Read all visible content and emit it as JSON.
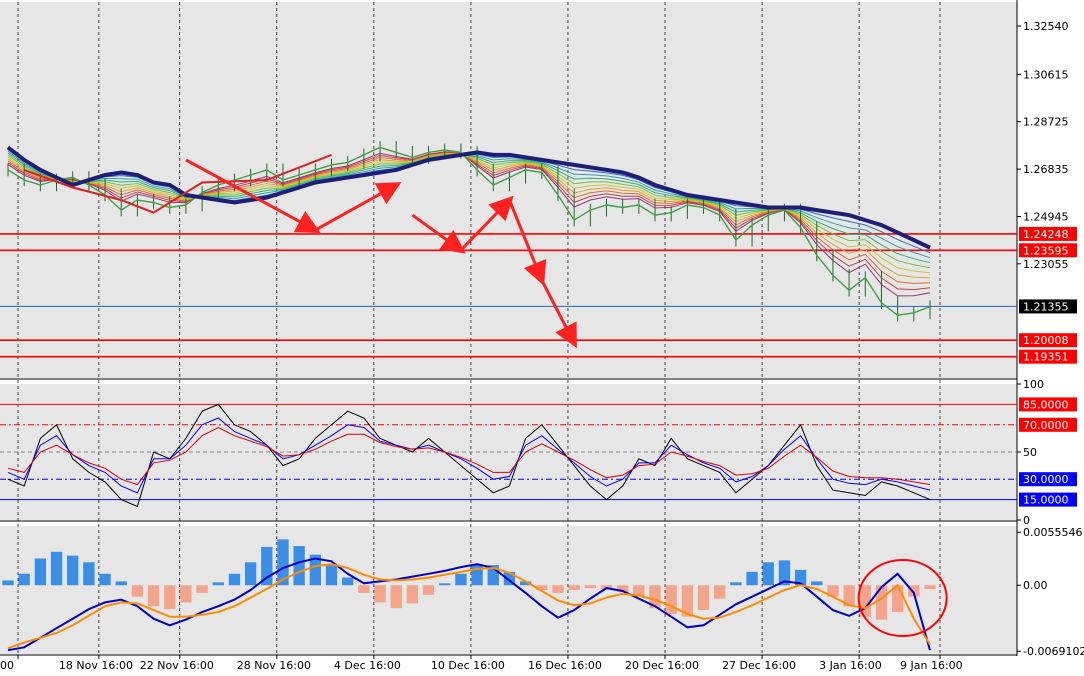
{
  "chart_data": [
    {
      "type": "line",
      "name": "price-panel",
      "ylim": [
        1.185,
        1.335
      ],
      "yticks": [
        "1.32540",
        "1.30615",
        "1.28725",
        "1.26835",
        "1.24945",
        "1.23055"
      ],
      "ytick_values": [
        1.3254,
        1.30615,
        1.28725,
        1.26835,
        1.24945,
        1.23055
      ],
      "levels": [
        {
          "label": "1.24248",
          "value": 1.24248,
          "color": "#ff0000"
        },
        {
          "label": "1.23595",
          "value": 1.23595,
          "color": "#ff0000"
        },
        {
          "label": "1.21355",
          "value": 1.21355,
          "color": "#000000",
          "line_color": "#1e64c8"
        },
        {
          "label": "1.20008",
          "value": 1.20008,
          "color": "#ff0000"
        },
        {
          "label": "1.19351",
          "value": 1.19351,
          "color": "#ff0000"
        }
      ],
      "series": [
        {
          "values": [
            1.277,
            1.272,
            1.268,
            1.265,
            1.262,
            1.264,
            1.266,
            1.267,
            1.266,
            1.263,
            1.262,
            1.258,
            1.257,
            1.256,
            1.255,
            1.256,
            1.257,
            1.259,
            1.261,
            1.263,
            1.264,
            1.265,
            1.266,
            1.267,
            1.268,
            1.27,
            1.272,
            1.273,
            1.274,
            1.275,
            1.274,
            1.274,
            1.273,
            1.272,
            1.271,
            1.27,
            1.269,
            1.268,
            1.267,
            1.265,
            1.262,
            1.26,
            1.258,
            1.257,
            1.256,
            1.255,
            1.254,
            1.253,
            1.253,
            1.253,
            1.252,
            1.251,
            1.25,
            1.248,
            1.246,
            1.243,
            1.24,
            1.237
          ]
        },
        {
          "values": [
            1.268,
            1.264,
            1.262,
            1.264,
            1.265,
            1.262,
            1.258,
            1.252,
            1.256,
            1.255,
            1.253,
            1.254,
            1.259,
            1.262,
            1.264,
            1.266,
            1.268,
            1.264,
            1.266,
            1.268,
            1.27,
            1.271,
            1.274,
            1.277,
            1.275,
            1.273,
            1.275,
            1.276,
            1.275,
            1.268,
            1.262,
            1.265,
            1.268,
            1.267,
            1.258,
            1.248,
            1.252,
            1.254,
            1.253,
            1.254,
            1.25,
            1.251,
            1.254,
            1.253,
            1.25,
            1.24,
            1.246,
            1.25,
            1.252,
            1.245,
            1.234,
            1.226,
            1.22,
            1.225,
            1.215,
            1.21,
            1.211,
            1.2135
          ]
        }
      ],
      "annotations": [
        {
          "type": "arrow",
          "points": [
            [
              1.272,
              11
            ],
            [
              1.244,
              19
            ]
          ]
        },
        {
          "type": "arrow",
          "points": [
            [
              1.244,
              19
            ],
            [
              1.262,
              24
            ]
          ]
        },
        {
          "type": "arrow",
          "points": [
            [
              1.25,
              25
            ],
            [
              1.236,
              28
            ]
          ]
        },
        {
          "type": "arrow",
          "points": [
            [
              1.236,
              28
            ],
            [
              1.256,
              31
            ]
          ]
        },
        {
          "type": "arrow",
          "points": [
            [
              1.256,
              31
            ],
            [
              1.224,
              33
            ]
          ]
        },
        {
          "type": "arrow",
          "points": [
            [
              1.224,
              33
            ],
            [
              1.199,
              35
            ]
          ]
        }
      ]
    },
    {
      "type": "line",
      "name": "oscillator-panel",
      "ylim": [
        0,
        100
      ],
      "yticks": [
        "100",
        "50",
        "0"
      ],
      "ytick_values": [
        100,
        50,
        0
      ],
      "levels": [
        {
          "label": "85.0000",
          "value": 85,
          "color": "#ff0000"
        },
        {
          "label": "70.0000",
          "value": 70,
          "color": "#ff0000"
        },
        {
          "label": "30.0000",
          "value": 30,
          "color": "#0000ff"
        },
        {
          "label": "15.0000",
          "value": 15,
          "color": "#0000ff"
        }
      ],
      "series": [
        {
          "values": [
            30,
            25,
            60,
            70,
            45,
            35,
            28,
            15,
            10,
            50,
            45,
            60,
            80,
            85,
            70,
            65,
            55,
            40,
            45,
            60,
            70,
            80,
            75,
            60,
            55,
            50,
            60,
            50,
            40,
            30,
            20,
            25,
            60,
            70,
            55,
            40,
            25,
            15,
            25,
            45,
            40,
            60,
            45,
            40,
            35,
            20,
            30,
            40,
            55,
            70,
            40,
            22,
            20,
            18,
            28,
            25,
            20,
            15
          ]
        },
        {
          "values": [
            35,
            30,
            55,
            62,
            48,
            40,
            35,
            25,
            20,
            45,
            45,
            55,
            70,
            75,
            65,
            60,
            55,
            45,
            48,
            55,
            62,
            70,
            68,
            58,
            55,
            52,
            55,
            50,
            45,
            38,
            30,
            32,
            55,
            62,
            52,
            42,
            32,
            25,
            30,
            42,
            42,
            55,
            48,
            42,
            38,
            28,
            32,
            40,
            52,
            62,
            45,
            30,
            27,
            26,
            30,
            28,
            25,
            22
          ]
        },
        {
          "values": [
            38,
            35,
            50,
            55,
            48,
            42,
            38,
            30,
            26,
            42,
            44,
            50,
            62,
            68,
            62,
            58,
            54,
            47,
            48,
            52,
            58,
            63,
            63,
            57,
            54,
            52,
            53,
            50,
            46,
            41,
            35,
            35,
            50,
            56,
            50,
            44,
            37,
            31,
            33,
            40,
            41,
            50,
            47,
            43,
            40,
            33,
            34,
            38,
            47,
            55,
            46,
            36,
            32,
            31,
            31,
            30,
            28,
            26
          ]
        }
      ]
    },
    {
      "type": "bar",
      "name": "histogram-panel",
      "ylim": [
        -0.0072,
        0.0062
      ],
      "yticks": [
        "0.0055546",
        "0.00",
        "-0.0069102"
      ],
      "ytick_values": [
        0.0055546,
        0,
        -0.0069102
      ],
      "values": [
        0.0005,
        0.0012,
        0.0028,
        0.0035,
        0.0031,
        0.0024,
        0.0012,
        0.0004,
        -0.0012,
        -0.0022,
        -0.0025,
        -0.0018,
        -0.0008,
        0.0003,
        0.0012,
        0.0024,
        0.004,
        0.0048,
        0.0041,
        0.0032,
        0.0021,
        0.0008,
        -0.0008,
        -0.0018,
        -0.0024,
        -0.0019,
        -0.001,
        0.0002,
        0.0012,
        0.0022,
        0.0021,
        0.0014,
        0.0004,
        -0.0005,
        -0.0008,
        -0.0005,
        -0.0003,
        -0.0004,
        -0.0007,
        -0.0012,
        -0.0024,
        -0.003,
        -0.0033,
        -0.0026,
        -0.0014,
        0.0003,
        0.0014,
        0.0024,
        0.0026,
        0.0016,
        0.0004,
        -0.0012,
        -0.0022,
        -0.0033,
        -0.0036,
        -0.0028,
        -0.0012,
        -0.0004
      ],
      "series": [
        {
          "values": [
            -0.0068,
            -0.0065,
            -0.0055,
            -0.0045,
            -0.0035,
            -0.0025,
            -0.0018,
            -0.0015,
            -0.0022,
            -0.0035,
            -0.0042,
            -0.0036,
            -0.0028,
            -0.0022,
            -0.0015,
            -0.0005,
            0.0008,
            0.0018,
            0.0024,
            0.0028,
            0.0025,
            0.0012,
            0.0002,
            0.0004,
            0.0006,
            0.0009,
            0.0012,
            0.0015,
            0.0019,
            0.0022,
            0.0018,
            0.0005,
            -0.0008,
            -0.0022,
            -0.0034,
            -0.0026,
            -0.0014,
            -0.0003,
            -0.0006,
            -0.0014,
            -0.0022,
            -0.0033,
            -0.0044,
            -0.0042,
            -0.0031,
            -0.002,
            -0.0012,
            -0.0004,
            0.0004,
            0.0002,
            -0.0012,
            -0.0026,
            -0.0032,
            -0.0024,
            -0.0002,
            0.0012,
            -0.0008,
            -0.0068
          ]
        },
        {
          "values": [
            -0.0066,
            -0.006,
            -0.0055,
            -0.005,
            -0.0042,
            -0.0032,
            -0.0022,
            -0.0018,
            -0.0019,
            -0.0026,
            -0.0033,
            -0.0033,
            -0.0031,
            -0.0028,
            -0.0022,
            -0.0013,
            -0.0004,
            0.0006,
            0.0014,
            0.002,
            0.0022,
            0.0018,
            0.0011,
            0.0006,
            0.0005,
            0.0006,
            0.0008,
            0.0011,
            0.0014,
            0.0017,
            0.0018,
            0.0013,
            0.0004,
            -0.0006,
            -0.0016,
            -0.0021,
            -0.0019,
            -0.0013,
            -0.0009,
            -0.0011,
            -0.0015,
            -0.0022,
            -0.003,
            -0.0035,
            -0.0034,
            -0.0028,
            -0.0021,
            -0.0013,
            -0.0005,
            0.0,
            -0.0004,
            -0.0012,
            -0.0021,
            -0.0024,
            -0.0014,
            0.0,
            -0.0035,
            -0.0062
          ]
        }
      ],
      "annotations": [
        {
          "type": "ellipse",
          "category_index": 55,
          "color": "#ff0000"
        }
      ]
    }
  ],
  "x_labels": [
    "00",
    "18 Nov 16:00",
    "22 Nov 16:00",
    "28 Nov 16:00",
    "4 Dec 16:00",
    "10 Dec 16:00",
    "16 Dec 16:00",
    "20 Dec 16:00",
    "27 Dec 16:00",
    "3 Jan 16:00",
    "9 Jan 16:00"
  ],
  "x_label_index": [
    0,
    5,
    10,
    16,
    22,
    28,
    34,
    40,
    46,
    52,
    57
  ],
  "colors": {
    "background": "#e6e6e6",
    "outer": "#ffffff",
    "ribbon_slow": "#1e1e78",
    "price_line": "#40a040",
    "zigzag": "#e02020",
    "arrow": "#ff2020",
    "osc_black": "#000000",
    "osc_blue": "#0000ff",
    "osc_red": "#e00000",
    "hist_pos": "#3a8ee6",
    "hist_neg": "#f4a48a",
    "signal_blue": "#0000c8",
    "signal_orange": "#ff8c00"
  }
}
